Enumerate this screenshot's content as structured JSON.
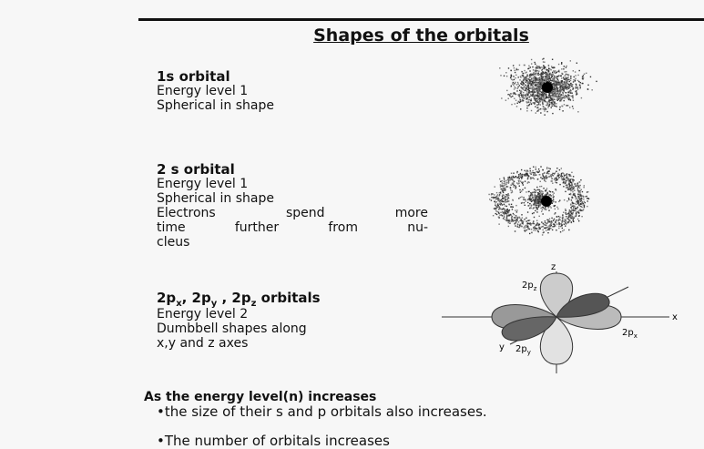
{
  "title": "Shapes of the orbitals",
  "sections": [
    {
      "heading": "1s orbital",
      "lines": [
        "Energy level 1",
        "Spherical in shape"
      ]
    },
    {
      "heading": "2 s orbital",
      "lines": [
        "Energy level 1",
        "Spherical in shape",
        "Electrons spend more",
        "time further from nu-",
        "cleus"
      ]
    },
    {
      "heading_parts": [
        {
          "text": "2p",
          "sub": "x"
        },
        {
          "text": ", 2p",
          "sub": "y"
        },
        {
          "text": " , 2p",
          "sub": "z"
        }
      ],
      "heading_suffix": " orbitals",
      "lines": [
        "Energy level 2",
        "Dumbbell shapes along",
        "x,y and z axes"
      ]
    }
  ],
  "diagram": {
    "axis_labels": {
      "x": "x",
      "y": "y",
      "z": "z"
    },
    "lobe_labels": [
      {
        "text": "2p",
        "sub": "z"
      },
      {
        "text": "2p",
        "sub": "x"
      },
      {
        "text": "2p",
        "sub": "y"
      }
    ]
  },
  "summary": {
    "heading": "As the energy level(n) increases",
    "bullets": [
      "•the size of their s and p orbitals also increases.",
      "•The number of orbitals increases"
    ]
  }
}
